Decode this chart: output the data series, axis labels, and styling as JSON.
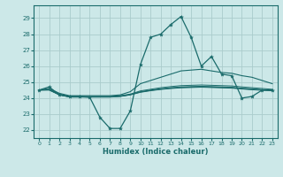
{
  "x": [
    0,
    1,
    2,
    3,
    4,
    5,
    6,
    7,
    8,
    9,
    10,
    11,
    12,
    13,
    14,
    15,
    16,
    17,
    18,
    19,
    20,
    21,
    22,
    23
  ],
  "line_main": [
    24.5,
    24.7,
    24.2,
    24.1,
    24.1,
    24.05,
    22.8,
    22.1,
    22.1,
    23.2,
    26.1,
    27.8,
    28.0,
    28.6,
    29.1,
    27.8,
    26.0,
    26.6,
    25.5,
    25.4,
    24.0,
    24.1,
    24.5,
    24.5
  ],
  "line_upper": [
    24.5,
    24.6,
    24.3,
    24.15,
    24.15,
    24.15,
    24.15,
    24.15,
    24.2,
    24.4,
    24.9,
    25.1,
    25.3,
    25.5,
    25.7,
    25.75,
    25.8,
    25.7,
    25.6,
    25.55,
    25.4,
    25.3,
    25.1,
    24.9
  ],
  "line_mid1": [
    24.5,
    24.55,
    24.25,
    24.1,
    24.1,
    24.1,
    24.1,
    24.1,
    24.15,
    24.25,
    24.45,
    24.55,
    24.65,
    24.72,
    24.78,
    24.8,
    24.82,
    24.8,
    24.78,
    24.76,
    24.7,
    24.65,
    24.6,
    24.55
  ],
  "line_mid2": [
    24.5,
    24.52,
    24.22,
    24.08,
    24.08,
    24.08,
    24.08,
    24.08,
    24.12,
    24.22,
    24.4,
    24.5,
    24.58,
    24.65,
    24.7,
    24.72,
    24.74,
    24.72,
    24.7,
    24.68,
    24.62,
    24.58,
    24.53,
    24.5
  ],
  "line_mid3": [
    24.5,
    24.51,
    24.21,
    24.07,
    24.07,
    24.07,
    24.07,
    24.07,
    24.11,
    24.21,
    24.38,
    24.48,
    24.56,
    24.62,
    24.67,
    24.69,
    24.71,
    24.69,
    24.67,
    24.65,
    24.59,
    24.55,
    24.51,
    24.47
  ],
  "line_lower": [
    24.5,
    24.5,
    24.2,
    24.06,
    24.06,
    24.06,
    24.06,
    24.06,
    24.1,
    24.2,
    24.36,
    24.46,
    24.54,
    24.6,
    24.64,
    24.66,
    24.68,
    24.66,
    24.64,
    24.62,
    24.57,
    24.52,
    24.49,
    24.45
  ],
  "bg_color": "#cce8e8",
  "line_color": "#1a6b6b",
  "grid_color": "#aacccc",
  "xlabel": "Humidex (Indice chaleur)",
  "ylim": [
    21.5,
    29.8
  ],
  "xlim": [
    -0.5,
    23.5
  ],
  "yticks": [
    22,
    23,
    24,
    25,
    26,
    27,
    28,
    29
  ],
  "xticks": [
    0,
    1,
    2,
    3,
    4,
    5,
    6,
    7,
    8,
    9,
    10,
    11,
    12,
    13,
    14,
    15,
    16,
    17,
    18,
    19,
    20,
    21,
    22,
    23
  ]
}
